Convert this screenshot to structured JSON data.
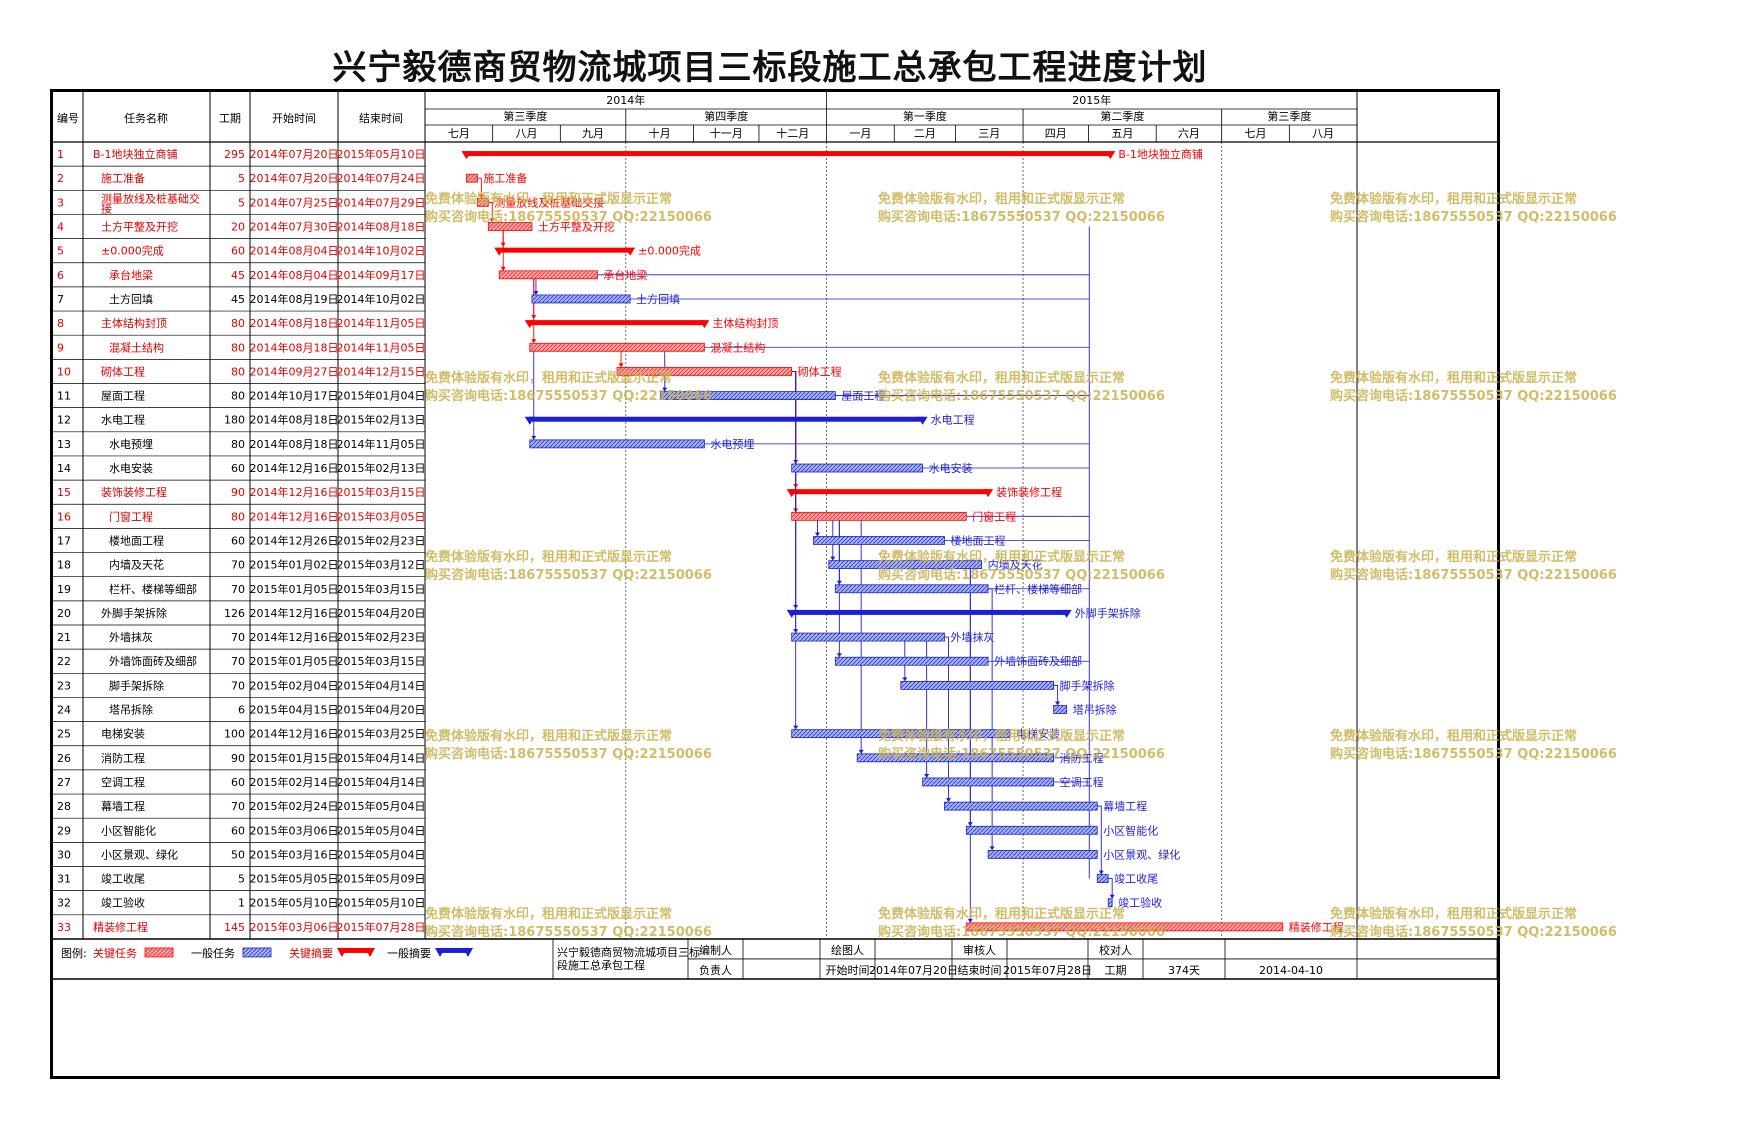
{
  "title": "兴宁毅德商贸物流城项目三标段施工总承包工程进度计划",
  "colors": {
    "critical": "#ff0000",
    "normal": "#1e1ed6",
    "critical_text": "#e00000",
    "grid": "#000000",
    "watermark": "#c9b24f"
  },
  "headers": {
    "id": "编号",
    "name": "任务名称",
    "duration": "工期",
    "start": "开始时间",
    "end": "结束时间"
  },
  "timescale": {
    "years": [
      {
        "label": "2014年",
        "from": "2014-07-01",
        "to": "2015-01-01"
      },
      {
        "label": "2015年",
        "from": "2015-01-01",
        "to": "2015-09-01"
      }
    ],
    "quarters": [
      {
        "label": "第三季度",
        "from": "2014-07-01",
        "to": "2014-10-01"
      },
      {
        "label": "第四季度",
        "from": "2014-10-01",
        "to": "2015-01-01"
      },
      {
        "label": "第一季度",
        "from": "2015-01-01",
        "to": "2015-04-01"
      },
      {
        "label": "第二季度",
        "from": "2015-04-01",
        "to": "2015-07-01"
      },
      {
        "label": "第三季度",
        "from": "2015-07-01",
        "to": "2015-09-01"
      }
    ],
    "months": [
      {
        "label": "七月",
        "from": "2014-07-01",
        "to": "2014-08-01"
      },
      {
        "label": "八月",
        "from": "2014-08-01",
        "to": "2014-09-01"
      },
      {
        "label": "九月",
        "from": "2014-09-01",
        "to": "2014-10-01"
      },
      {
        "label": "十月",
        "from": "2014-10-01",
        "to": "2014-11-01"
      },
      {
        "label": "十一月",
        "from": "2014-11-01",
        "to": "2014-12-01"
      },
      {
        "label": "十二月",
        "from": "2014-12-01",
        "to": "2015-01-01"
      },
      {
        "label": "一月",
        "from": "2015-01-01",
        "to": "2015-02-01"
      },
      {
        "label": "二月",
        "from": "2015-02-01",
        "to": "2015-03-01"
      },
      {
        "label": "三月",
        "from": "2015-03-01",
        "to": "2015-04-01"
      },
      {
        "label": "四月",
        "from": "2015-04-01",
        "to": "2015-05-01"
      },
      {
        "label": "五月",
        "from": "2015-05-01",
        "to": "2015-06-01"
      },
      {
        "label": "六月",
        "from": "2015-06-01",
        "to": "2015-07-01"
      },
      {
        "label": "七月",
        "from": "2015-07-01",
        "to": "2015-08-01"
      },
      {
        "label": "八月",
        "from": "2015-08-01",
        "to": "2015-09-01"
      }
    ]
  },
  "tasks": [
    {
      "id": "1",
      "name": "B-1地块独立商铺",
      "duration": "295",
      "start": "2014年07月20日",
      "end": "2015年05月10日",
      "s": "2014-07-20",
      "e": "2015-05-10",
      "kind": "summary",
      "critical": true,
      "indent": 0
    },
    {
      "id": "2",
      "name": "施工准备",
      "duration": "5",
      "start": "2014年07月20日",
      "end": "2014年07月24日",
      "s": "2014-07-20",
      "e": "2014-07-24",
      "kind": "task",
      "critical": true,
      "indent": 1
    },
    {
      "id": "3",
      "name": "测量放线及桩基础交接",
      "duration": "5",
      "start": "2014年07月25日",
      "end": "2014年07月29日",
      "s": "2014-07-25",
      "e": "2014-07-29",
      "kind": "task",
      "critical": true,
      "indent": 1
    },
    {
      "id": "4",
      "name": "土方平整及开挖",
      "duration": "20",
      "start": "2014年07月30日",
      "end": "2014年08月18日",
      "s": "2014-07-30",
      "e": "2014-08-18",
      "kind": "task",
      "critical": true,
      "indent": 1
    },
    {
      "id": "5",
      "name": "±0.000完成",
      "duration": "60",
      "start": "2014年08月04日",
      "end": "2014年10月02日",
      "s": "2014-08-04",
      "e": "2014-10-02",
      "kind": "summary",
      "critical": true,
      "indent": 1
    },
    {
      "id": "6",
      "name": "承台地梁",
      "duration": "45",
      "start": "2014年08月04日",
      "end": "2014年09月17日",
      "s": "2014-08-04",
      "e": "2014-09-17",
      "kind": "task",
      "critical": true,
      "indent": 2
    },
    {
      "id": "7",
      "name": "土方回填",
      "duration": "45",
      "start": "2014年08月19日",
      "end": "2014年10月02日",
      "s": "2014-08-19",
      "e": "2014-10-02",
      "kind": "task",
      "critical": false,
      "indent": 2
    },
    {
      "id": "8",
      "name": "主体结构封顶",
      "duration": "80",
      "start": "2014年08月18日",
      "end": "2014年11月05日",
      "s": "2014-08-18",
      "e": "2014-11-05",
      "kind": "summary",
      "critical": true,
      "indent": 1
    },
    {
      "id": "9",
      "name": "混凝土结构",
      "duration": "80",
      "start": "2014年08月18日",
      "end": "2014年11月05日",
      "s": "2014-08-18",
      "e": "2014-11-05",
      "kind": "task",
      "critical": true,
      "indent": 2
    },
    {
      "id": "10",
      "name": "砌体工程",
      "duration": "80",
      "start": "2014年09月27日",
      "end": "2014年12月15日",
      "s": "2014-09-27",
      "e": "2014-12-15",
      "kind": "task",
      "critical": true,
      "indent": 1
    },
    {
      "id": "11",
      "name": "屋面工程",
      "duration": "80",
      "start": "2014年10月17日",
      "end": "2015年01月04日",
      "s": "2014-10-17",
      "e": "2015-01-04",
      "kind": "task",
      "critical": false,
      "indent": 1
    },
    {
      "id": "12",
      "name": "水电工程",
      "duration": "180",
      "start": "2014年08月18日",
      "end": "2015年02月13日",
      "s": "2014-08-18",
      "e": "2015-02-13",
      "kind": "summary",
      "critical": false,
      "indent": 1
    },
    {
      "id": "13",
      "name": "水电预埋",
      "duration": "80",
      "start": "2014年08月18日",
      "end": "2014年11月05日",
      "s": "2014-08-18",
      "e": "2014-11-05",
      "kind": "task",
      "critical": false,
      "indent": 2
    },
    {
      "id": "14",
      "name": "水电安装",
      "duration": "60",
      "start": "2014年12月16日",
      "end": "2015年02月13日",
      "s": "2014-12-16",
      "e": "2015-02-13",
      "kind": "task",
      "critical": false,
      "indent": 2
    },
    {
      "id": "15",
      "name": "装饰装修工程",
      "duration": "90",
      "start": "2014年12月16日",
      "end": "2015年03月15日",
      "s": "2014-12-16",
      "e": "2015-03-15",
      "kind": "summary",
      "critical": true,
      "indent": 1
    },
    {
      "id": "16",
      "name": "门窗工程",
      "duration": "80",
      "start": "2014年12月16日",
      "end": "2015年03月05日",
      "s": "2014-12-16",
      "e": "2015-03-05",
      "kind": "task",
      "critical": true,
      "indent": 2
    },
    {
      "id": "17",
      "name": "楼地面工程",
      "duration": "60",
      "start": "2014年12月26日",
      "end": "2015年02月23日",
      "s": "2014-12-26",
      "e": "2015-02-23",
      "kind": "task",
      "critical": false,
      "indent": 2
    },
    {
      "id": "18",
      "name": "内墙及天花",
      "duration": "70",
      "start": "2015年01月02日",
      "end": "2015年03月12日",
      "s": "2015-01-02",
      "e": "2015-03-12",
      "kind": "task",
      "critical": false,
      "indent": 2
    },
    {
      "id": "19",
      "name": "栏杆、楼梯等细部",
      "duration": "70",
      "start": "2015年01月05日",
      "end": "2015年03月15日",
      "s": "2015-01-05",
      "e": "2015-03-15",
      "kind": "task",
      "critical": false,
      "indent": 2
    },
    {
      "id": "20",
      "name": "外脚手架拆除",
      "duration": "126",
      "start": "2014年12月16日",
      "end": "2015年04月20日",
      "s": "2014-12-16",
      "e": "2015-04-20",
      "kind": "summary",
      "critical": false,
      "indent": 1
    },
    {
      "id": "21",
      "name": "外墙抹灰",
      "duration": "70",
      "start": "2014年12月16日",
      "end": "2015年02月23日",
      "s": "2014-12-16",
      "e": "2015-02-23",
      "kind": "task",
      "critical": false,
      "indent": 2
    },
    {
      "id": "22",
      "name": "外墙饰面砖及细部",
      "duration": "70",
      "start": "2015年01月05日",
      "end": "2015年03月15日",
      "s": "2015-01-05",
      "e": "2015-03-15",
      "kind": "task",
      "critical": false,
      "indent": 2
    },
    {
      "id": "23",
      "name": "脚手架拆除",
      "duration": "70",
      "start": "2015年02月04日",
      "end": "2015年04月14日",
      "s": "2015-02-04",
      "e": "2015-04-14",
      "kind": "task",
      "critical": false,
      "indent": 2
    },
    {
      "id": "24",
      "name": "塔吊拆除",
      "duration": "6",
      "start": "2015年04月15日",
      "end": "2015年04月20日",
      "s": "2015-04-15",
      "e": "2015-04-20",
      "kind": "task",
      "critical": false,
      "indent": 2
    },
    {
      "id": "25",
      "name": "电梯安装",
      "duration": "100",
      "start": "2014年12月16日",
      "end": "2015年03月25日",
      "s": "2014-12-16",
      "e": "2015-03-25",
      "kind": "task",
      "critical": false,
      "indent": 1
    },
    {
      "id": "26",
      "name": "消防工程",
      "duration": "90",
      "start": "2015年01月15日",
      "end": "2015年04月14日",
      "s": "2015-01-15",
      "e": "2015-04-14",
      "kind": "task",
      "critical": false,
      "indent": 1
    },
    {
      "id": "27",
      "name": "空调工程",
      "duration": "60",
      "start": "2015年02月14日",
      "end": "2015年04月14日",
      "s": "2015-02-14",
      "e": "2015-04-14",
      "kind": "task",
      "critical": false,
      "indent": 1
    },
    {
      "id": "28",
      "name": "幕墙工程",
      "duration": "70",
      "start": "2015年02月24日",
      "end": "2015年05月04日",
      "s": "2015-02-24",
      "e": "2015-05-04",
      "kind": "task",
      "critical": false,
      "indent": 1
    },
    {
      "id": "29",
      "name": "小区智能化",
      "duration": "60",
      "start": "2015年03月06日",
      "end": "2015年05月04日",
      "s": "2015-03-06",
      "e": "2015-05-04",
      "kind": "task",
      "critical": false,
      "indent": 1
    },
    {
      "id": "30",
      "name": "小区景观、绿化",
      "duration": "50",
      "start": "2015年03月16日",
      "end": "2015年05月04日",
      "s": "2015-03-16",
      "e": "2015-05-04",
      "kind": "task",
      "critical": false,
      "indent": 1
    },
    {
      "id": "31",
      "name": "竣工收尾",
      "duration": "5",
      "start": "2015年05月05日",
      "end": "2015年05月09日",
      "s": "2015-05-05",
      "e": "2015-05-09",
      "kind": "task",
      "critical": false,
      "indent": 1
    },
    {
      "id": "32",
      "name": "竣工验收",
      "duration": "1",
      "start": "2015年05月10日",
      "end": "2015年05月10日",
      "s": "2015-05-10",
      "e": "2015-05-10",
      "kind": "task",
      "critical": false,
      "indent": 1
    },
    {
      "id": "33",
      "name": "精装修工程",
      "duration": "145",
      "start": "2015年03月06日",
      "end": "2015年07月28日",
      "s": "2015-03-06",
      "e": "2015-07-28",
      "kind": "task",
      "critical": true,
      "indent": 0
    }
  ],
  "footer": {
    "legend_label": "图例:",
    "legend": [
      {
        "label": "关键任务",
        "kind": "task",
        "critical": true
      },
      {
        "label": "一般任务",
        "kind": "task",
        "critical": false
      },
      {
        "label": "关键摘要",
        "kind": "summary",
        "critical": true
      },
      {
        "label": "一般摘要",
        "kind": "summary",
        "critical": false
      }
    ],
    "project": "兴宁毅德商贸物流城项目三标段施工总承包工程",
    "editor_label": "编制人",
    "drawer_label": "绘图人",
    "reviewer_label": "审核人",
    "checker_label": "校对人",
    "owner_label": "负责人",
    "start_label": "开始时间",
    "start_value": "2014年07月20日",
    "end_label": "结束时间",
    "end_value": "2015年07月28日",
    "duration_label": "工期",
    "duration_value": "374天",
    "date_value": "2014-04-10"
  },
  "watermark": {
    "line1": "免费体验版有水印，租用和正式版显示正常",
    "line2": "购买咨询电话:18675550537 QQ:22150066"
  }
}
